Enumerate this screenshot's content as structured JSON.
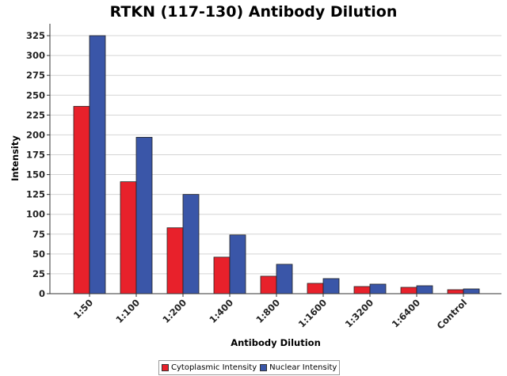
{
  "chart_data": {
    "type": "bar",
    "title": "RTKN (117-130) Antibody Dilution",
    "xlabel": "Antibody Dilution",
    "ylabel": "Intensity",
    "categories": [
      "1:50",
      "1:100",
      "1:200",
      "1:400",
      "1:800",
      "1:1600",
      "1:3200",
      "1:6400",
      "Control"
    ],
    "series": [
      {
        "name": "Cytoplasmic Intensity",
        "color": "#e8212b",
        "values": [
          236,
          141,
          83,
          46,
          22,
          13,
          9,
          8,
          5
        ]
      },
      {
        "name": "Nuclear Intensity",
        "color": "#3a56a8",
        "values": [
          325,
          197,
          125,
          74,
          37,
          19,
          12,
          10,
          6
        ]
      }
    ],
    "ylim": [
      0,
      340
    ],
    "yticks": [
      0,
      25,
      50,
      75,
      100,
      125,
      150,
      175,
      200,
      225,
      250,
      275,
      300,
      325
    ],
    "grid": true,
    "legend_position": "bottom"
  }
}
